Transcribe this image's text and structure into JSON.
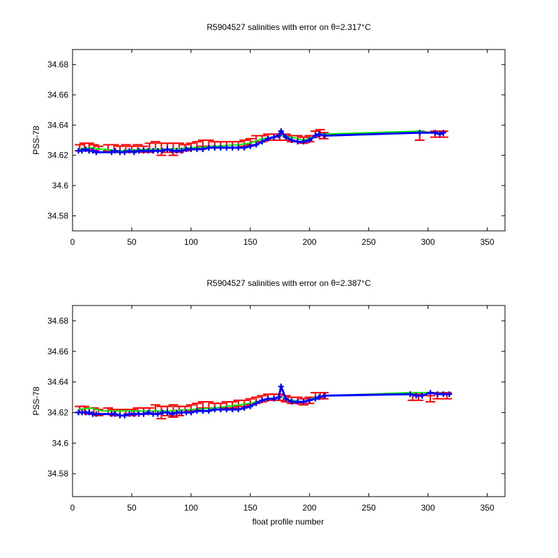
{
  "figure": {
    "xlabel": "float profile number"
  },
  "colors": {
    "error_bar": "#ff0000",
    "salinity_marker": "#0000ff",
    "mapped_line": "#00ee00",
    "axes": "#000000"
  },
  "chart_data": [
    {
      "type": "scatter",
      "title_prefix": "R5904527 salinities with error on θ=2.317",
      "title_unit": "°C",
      "ylabel": "PSS-78",
      "xlabel": "",
      "xlim": [
        0,
        365
      ],
      "ylim": [
        34.57,
        34.69
      ],
      "xticks": [
        "0",
        "50",
        "100",
        "150",
        "200",
        "250",
        "300",
        "350"
      ],
      "yticks": [
        "34.58",
        "34.6",
        "34.62",
        "34.64",
        "34.66",
        "34.68"
      ],
      "grid": false,
      "series": [
        {
          "key": "mapped",
          "style": "line",
          "x": [
            5,
            15,
            25,
            40,
            60,
            80,
            100,
            120,
            140,
            150,
            160,
            170,
            176,
            185,
            195,
            205,
            212,
            250,
            293,
            305,
            313
          ],
          "y": [
            34.624,
            34.625,
            34.624,
            34.623,
            34.624,
            34.624,
            34.625,
            34.626,
            34.627,
            34.628,
            34.631,
            34.632,
            34.633,
            34.632,
            34.63,
            34.633,
            34.634,
            34.635,
            34.636,
            34.635,
            34.635
          ]
        },
        {
          "key": "salinity",
          "style": "markers",
          "x": [
            5,
            8,
            11,
            14,
            17,
            20,
            33,
            36,
            40,
            44,
            48,
            52,
            56,
            60,
            64,
            68,
            72,
            76,
            80,
            84,
            88,
            92,
            96,
            100,
            105,
            110,
            115,
            120,
            125,
            130,
            135,
            140,
            145,
            150,
            155,
            160,
            165,
            170,
            174,
            176,
            180,
            185,
            190,
            195,
            200,
            205,
            208,
            213,
            293,
            306,
            310,
            313
          ],
          "y": [
            34.623,
            34.623,
            34.624,
            34.623,
            34.623,
            34.622,
            34.622,
            34.623,
            34.622,
            34.622,
            34.623,
            34.622,
            34.623,
            34.623,
            34.623,
            34.623,
            34.623,
            34.623,
            34.624,
            34.623,
            34.623,
            34.623,
            34.624,
            34.624,
            34.624,
            34.624,
            34.625,
            34.625,
            34.625,
            34.625,
            34.625,
            34.625,
            34.625,
            34.626,
            34.627,
            34.629,
            34.631,
            34.632,
            34.633,
            34.636,
            34.632,
            34.63,
            34.629,
            34.629,
            34.63,
            34.633,
            34.634,
            34.633,
            34.635,
            34.635,
            34.634,
            34.635
          ]
        },
        {
          "key": "error",
          "style": "errorbar",
          "x": [
            6,
            10,
            14,
            18,
            22,
            30,
            35,
            40,
            45,
            50,
            55,
            60,
            65,
            70,
            75,
            80,
            85,
            90,
            95,
            100,
            105,
            110,
            115,
            120,
            125,
            130,
            135,
            140,
            145,
            150,
            155,
            160,
            165,
            170,
            175,
            180,
            185,
            190,
            195,
            200,
            205,
            209,
            212,
            293,
            306,
            313
          ],
          "y": [
            34.625,
            34.626,
            34.626,
            34.625,
            34.624,
            34.625,
            34.625,
            34.624,
            34.625,
            34.624,
            34.625,
            34.624,
            34.625,
            34.626,
            34.624,
            34.625,
            34.624,
            34.625,
            34.625,
            34.626,
            34.627,
            34.628,
            34.628,
            34.627,
            34.627,
            34.627,
            34.627,
            34.627,
            34.628,
            34.629,
            34.631,
            34.631,
            34.632,
            34.632,
            34.632,
            34.632,
            34.631,
            34.631,
            34.63,
            34.631,
            34.634,
            34.635,
            34.633,
            34.633,
            34.634,
            34.634
          ],
          "err": [
            0.002,
            0.002,
            0.002,
            0.002,
            0.002,
            0.002,
            0.002,
            0.002,
            0.002,
            0.002,
            0.002,
            0.002,
            0.003,
            0.003,
            0.004,
            0.003,
            0.004,
            0.003,
            0.002,
            0.002,
            0.002,
            0.002,
            0.002,
            0.002,
            0.002,
            0.002,
            0.002,
            0.002,
            0.002,
            0.002,
            0.002,
            0.002,
            0.002,
            0.002,
            0.002,
            0.002,
            0.002,
            0.002,
            0.002,
            0.002,
            0.002,
            0.002,
            0.002,
            0.003,
            0.002,
            0.002
          ]
        }
      ]
    },
    {
      "type": "scatter",
      "title_prefix": "R5904527 salinities with error on θ=2.387",
      "title_unit": "°C",
      "ylabel": "PSS-78",
      "xlabel": "float profile number",
      "xlim": [
        0,
        365
      ],
      "ylim": [
        34.565,
        34.69
      ],
      "xticks": [
        "0",
        "50",
        "100",
        "150",
        "200",
        "250",
        "300",
        "350"
      ],
      "yticks": [
        "34.58",
        "34.6",
        "34.62",
        "34.64",
        "34.66",
        "34.68"
      ],
      "grid": false,
      "series": [
        {
          "key": "mapped",
          "style": "line",
          "x": [
            5,
            15,
            25,
            40,
            60,
            80,
            100,
            120,
            140,
            150,
            160,
            170,
            176,
            185,
            195,
            205,
            212,
            250,
            285,
            300,
            318
          ],
          "y": [
            34.622,
            34.623,
            34.621,
            34.621,
            34.621,
            34.621,
            34.622,
            34.623,
            34.625,
            34.626,
            34.628,
            34.629,
            34.63,
            34.628,
            34.627,
            34.63,
            34.631,
            34.632,
            34.633,
            34.633,
            34.632
          ]
        },
        {
          "key": "salinity",
          "style": "markers",
          "x": [
            5,
            8,
            11,
            14,
            17,
            20,
            33,
            36,
            40,
            44,
            48,
            52,
            56,
            60,
            64,
            68,
            72,
            76,
            80,
            84,
            88,
            92,
            96,
            100,
            105,
            110,
            115,
            120,
            125,
            130,
            135,
            140,
            145,
            150,
            155,
            160,
            165,
            170,
            174,
            176,
            180,
            185,
            190,
            195,
            200,
            205,
            208,
            213,
            285,
            290,
            295,
            302,
            308,
            313,
            318
          ],
          "y": [
            34.62,
            34.62,
            34.62,
            34.62,
            34.619,
            34.619,
            34.619,
            34.619,
            34.618,
            34.618,
            34.619,
            34.619,
            34.619,
            34.619,
            34.62,
            34.619,
            34.619,
            34.62,
            34.62,
            34.619,
            34.62,
            34.62,
            34.62,
            34.62,
            34.621,
            34.621,
            34.621,
            34.622,
            34.622,
            34.622,
            34.622,
            34.622,
            34.623,
            34.624,
            34.626,
            34.628,
            34.629,
            34.629,
            34.63,
            34.637,
            34.629,
            34.627,
            34.627,
            34.627,
            34.628,
            34.629,
            34.63,
            34.631,
            34.632,
            34.631,
            34.631,
            34.633,
            34.632,
            34.632,
            34.632
          ]
        },
        {
          "key": "error",
          "style": "errorbar",
          "x": [
            6,
            10,
            14,
            18,
            22,
            30,
            35,
            40,
            45,
            50,
            55,
            60,
            65,
            70,
            75,
            80,
            85,
            90,
            95,
            100,
            105,
            110,
            115,
            120,
            125,
            130,
            135,
            140,
            145,
            150,
            155,
            160,
            165,
            170,
            175,
            180,
            185,
            190,
            195,
            200,
            205,
            209,
            212,
            287,
            292,
            302,
            308,
            316
          ],
          "y": [
            34.622,
            34.622,
            34.621,
            34.621,
            34.62,
            34.621,
            34.62,
            34.62,
            34.62,
            34.62,
            34.621,
            34.621,
            34.621,
            34.622,
            34.62,
            34.621,
            34.621,
            34.621,
            34.622,
            34.623,
            34.624,
            34.625,
            34.625,
            34.624,
            34.624,
            34.625,
            34.625,
            34.626,
            34.626,
            34.627,
            34.628,
            34.629,
            34.63,
            34.63,
            34.63,
            34.629,
            34.628,
            34.628,
            34.627,
            34.628,
            34.631,
            34.631,
            34.631,
            34.63,
            34.63,
            34.629,
            34.631,
            34.631
          ],
          "err": [
            0.002,
            0.002,
            0.002,
            0.002,
            0.002,
            0.002,
            0.002,
            0.002,
            0.002,
            0.002,
            0.002,
            0.002,
            0.002,
            0.003,
            0.004,
            0.003,
            0.004,
            0.003,
            0.002,
            0.002,
            0.002,
            0.002,
            0.002,
            0.002,
            0.002,
            0.002,
            0.002,
            0.002,
            0.002,
            0.002,
            0.002,
            0.002,
            0.002,
            0.002,
            0.002,
            0.002,
            0.002,
            0.002,
            0.002,
            0.002,
            0.002,
            0.002,
            0.002,
            0.002,
            0.002,
            0.002,
            0.002,
            0.002
          ]
        }
      ]
    }
  ]
}
